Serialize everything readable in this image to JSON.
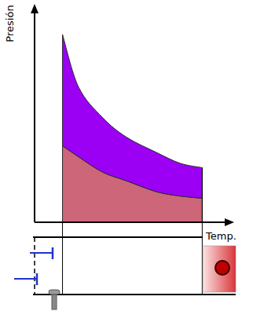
{
  "chart_data": {
    "type": "area",
    "stacked": true,
    "tick_labels": false,
    "grid": false,
    "y_label": "Presión",
    "x_label": "Temp.",
    "xlim": [
      0,
      100
    ],
    "ylim": [
      0,
      100
    ],
    "x": [
      14,
      22,
      34,
      46,
      61,
      73,
      84
    ],
    "series": [
      {
        "color": "#cd6678",
        "values": [
          35,
          30,
          23,
          19,
          14,
          12,
          11
        ]
      },
      {
        "color": "#9b00f5",
        "values": [
          51,
          32,
          25,
          20,
          18,
          15,
          14
        ]
      }
    ]
  }
}
